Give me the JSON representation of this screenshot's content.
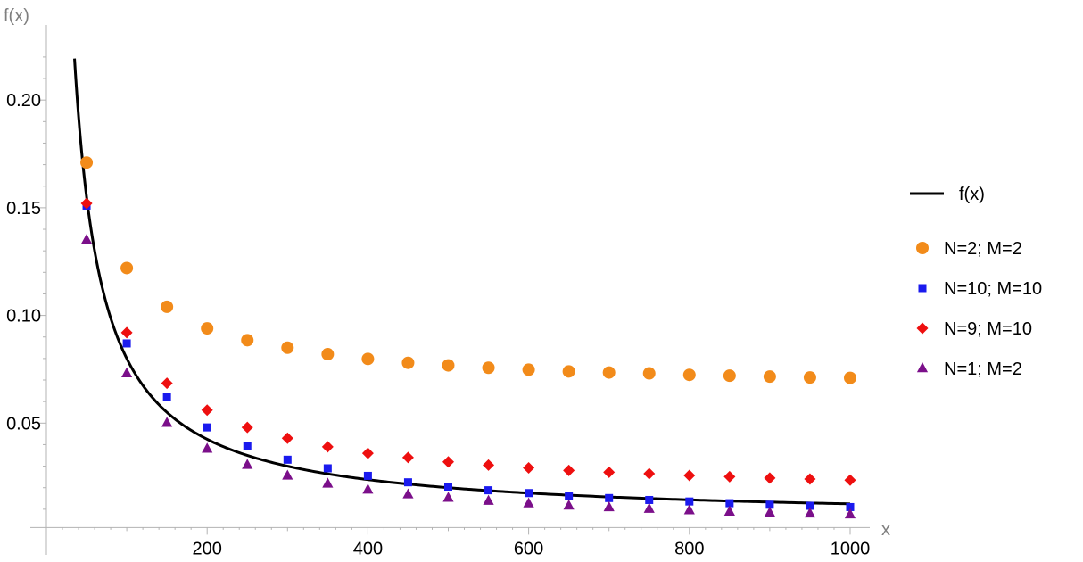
{
  "chart_data": {
    "type": "scatter",
    "xlabel": "x",
    "ylabel": "f(x)",
    "xlim": [
      0,
      1010
    ],
    "ylim": [
      0,
      0.227
    ],
    "x_axis_crossing_y": 0.0015,
    "xticks": [
      200,
      400,
      600,
      800,
      1000
    ],
    "xtick_labels": [
      "200",
      "400",
      "600",
      "800",
      "1000"
    ],
    "yticks": [
      0.05,
      0.1,
      0.15,
      0.2
    ],
    "ytick_labels": [
      "0.05",
      "0.10",
      "0.15",
      "0.20"
    ],
    "grid": false,
    "legend_position": "right",
    "curve": {
      "name": "f(x)",
      "color": "#000000",
      "x_range": [
        35,
        1000
      ],
      "description_formula": "12.4/x"
    },
    "series": [
      {
        "name": "N=2; M=2",
        "marker": "circle",
        "color": "#f28b1a",
        "x": [
          50,
          100,
          150,
          200,
          250,
          300,
          350,
          400,
          450,
          500,
          550,
          600,
          650,
          700,
          750,
          800,
          850,
          900,
          950,
          1000
        ],
        "values": [
          0.171,
          0.122,
          0.104,
          0.094,
          0.0885,
          0.085,
          0.082,
          0.0798,
          0.078,
          0.0768,
          0.0757,
          0.0748,
          0.074,
          0.0735,
          0.0731,
          0.0724,
          0.072,
          0.0716,
          0.0712,
          0.071
        ]
      },
      {
        "name": "N=10; M=10",
        "marker": "square",
        "color": "#1a1aee",
        "x": [
          50,
          100,
          150,
          200,
          250,
          300,
          350,
          400,
          450,
          500,
          550,
          600,
          650,
          700,
          750,
          800,
          850,
          900,
          950,
          1000
        ],
        "values": [
          0.151,
          0.087,
          0.062,
          0.048,
          0.0395,
          0.033,
          0.029,
          0.0255,
          0.0225,
          0.0205,
          0.0188,
          0.0175,
          0.0163,
          0.0152,
          0.0143,
          0.0136,
          0.0128,
          0.0121,
          0.0116,
          0.011
        ]
      },
      {
        "name": "N=9; M=10",
        "marker": "diamond",
        "color": "#ee0f0f",
        "x": [
          50,
          100,
          150,
          200,
          250,
          300,
          350,
          400,
          450,
          500,
          550,
          600,
          650,
          700,
          750,
          800,
          850,
          900,
          950,
          1000
        ],
        "values": [
          0.152,
          0.092,
          0.0685,
          0.056,
          0.048,
          0.043,
          0.039,
          0.036,
          0.034,
          0.032,
          0.0305,
          0.0292,
          0.028,
          0.0272,
          0.0265,
          0.0257,
          0.0251,
          0.0245,
          0.024,
          0.0235
        ]
      },
      {
        "name": "N=1; M=2",
        "marker": "triangle",
        "color": "#7b0f8a",
        "x": [
          50,
          100,
          150,
          200,
          250,
          300,
          350,
          400,
          450,
          500,
          550,
          600,
          650,
          700,
          750,
          800,
          850,
          900,
          950,
          1000
        ],
        "values": [
          0.135,
          0.073,
          0.05,
          0.038,
          0.0305,
          0.0255,
          0.0218,
          0.019,
          0.0168,
          0.0152,
          0.0138,
          0.0126,
          0.0116,
          0.0108,
          0.0101,
          0.0094,
          0.0088,
          0.0083,
          0.0079,
          0.0075
        ]
      }
    ]
  }
}
